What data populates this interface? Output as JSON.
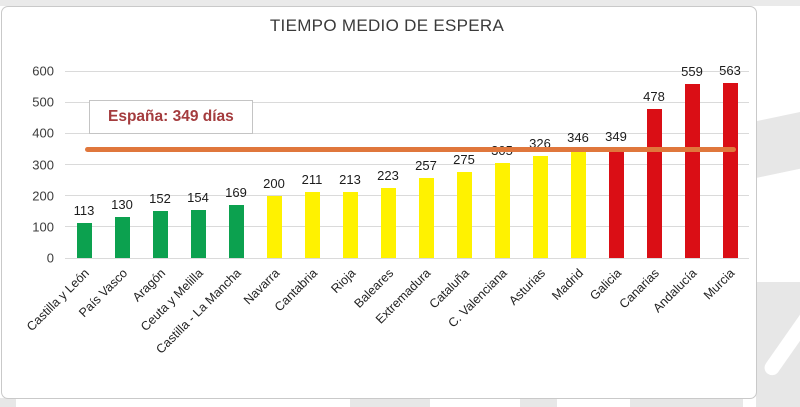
{
  "chart_data": {
    "type": "bar",
    "title": "TIEMPO MEDIO DE ESPERA",
    "categories": [
      "Castilla y León",
      "País Vasco",
      "Aragón",
      "Ceuta y Melilla",
      "Castilla - La Mancha",
      "Navarra",
      "Cantabria",
      "Rioja",
      "Baleares",
      "Extremadura",
      "Cataluña",
      "C. Valenciana",
      "Asturias",
      "Madrid",
      "Galicia",
      "Canarias",
      "Andalucía",
      "Murcia"
    ],
    "values": [
      113,
      130,
      152,
      154,
      169,
      200,
      211,
      213,
      223,
      257,
      275,
      305,
      326,
      346,
      349,
      478,
      559,
      563
    ],
    "bar_colors": [
      "#0CA14F",
      "#0CA14F",
      "#0CA14F",
      "#0CA14F",
      "#0CA14F",
      "#FFF200",
      "#FFF200",
      "#FFF200",
      "#FFF200",
      "#FFF200",
      "#FFF200",
      "#FFF200",
      "#FFF200",
      "#FFF200",
      "#DA0E15",
      "#DA0E15",
      "#DA0E15",
      "#DA0E15"
    ],
    "palette": {
      "low_green": "#0CA14F",
      "mid_yellow": "#FFF200",
      "high_red": "#DA0E15"
    },
    "ylim": [
      0,
      600
    ],
    "yticks": [
      0,
      100,
      200,
      300,
      400,
      500,
      600
    ],
    "grid": true,
    "data_labels": true,
    "x_tick_rotation": -45,
    "legend": "none",
    "reference_line": {
      "value": 349,
      "label": "España: 349 días",
      "color": "#E0773C",
      "label_color": "#A43C3E"
    }
  }
}
